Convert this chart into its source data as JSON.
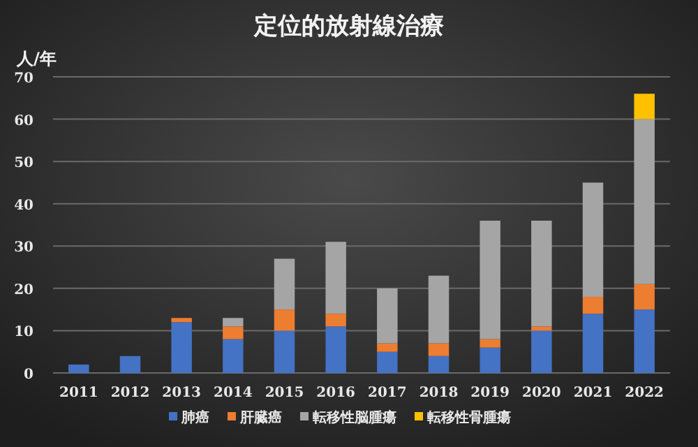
{
  "chart_data": {
    "type": "bar",
    "title": "定位的放射線治療",
    "ylabel": "人/年",
    "stacked": true,
    "categories": [
      "2011",
      "2012",
      "2013",
      "2014",
      "2015",
      "2016",
      "2017",
      "2018",
      "2019",
      "2020",
      "2021",
      "2022"
    ],
    "series": [
      {
        "name": "肺癌",
        "color": "#4472c4",
        "values": [
          2,
          4,
          12,
          8,
          10,
          11,
          5,
          4,
          6,
          10,
          14,
          15
        ]
      },
      {
        "name": "肝臓癌",
        "color": "#ed7d31",
        "values": [
          0,
          0,
          1,
          3,
          5,
          3,
          2,
          3,
          2,
          1,
          4,
          6
        ]
      },
      {
        "name": "転移性脳腫瘍",
        "color": "#a5a5a5",
        "values": [
          0,
          0,
          0,
          2,
          12,
          17,
          13,
          16,
          28,
          25,
          27,
          39
        ]
      },
      {
        "name": "転移性骨腫瘍",
        "color": "#ffc000",
        "values": [
          0,
          0,
          0,
          0,
          0,
          0,
          0,
          0,
          0,
          0,
          0,
          6
        ]
      }
    ],
    "ylim": [
      0,
      70
    ],
    "yticks": [
      0,
      10,
      20,
      30,
      40,
      50,
      60,
      70
    ],
    "grid": "y",
    "legend": "bottom"
  }
}
